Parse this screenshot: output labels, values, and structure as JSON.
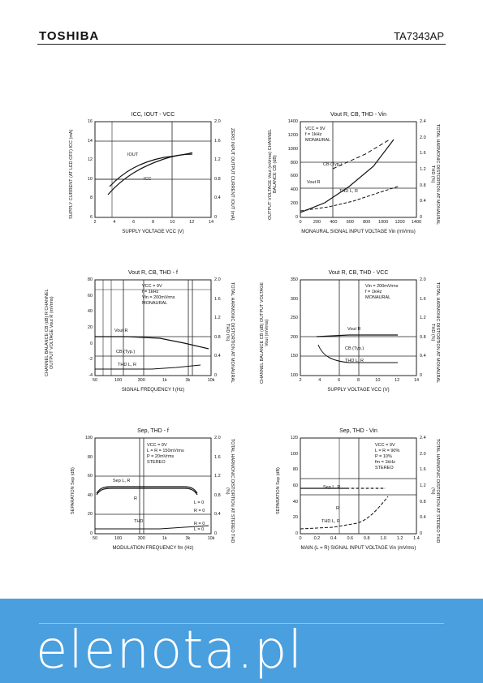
{
  "header": {
    "brand": "TOSHIBA",
    "part_number": "TA7343AP"
  },
  "footer": {
    "site": "elenota.pl"
  },
  "panels": {
    "p1": {
      "title": "ICC, IOUT - VCC",
      "ylabel": "SUPPLY CURRENT (AT LED OFF) ICC (mA)",
      "ylabel_r": "ZERO INPUT OUTPUT CURRENT IOUT (mA)",
      "xlabel": "SUPPLY VOLTAGE VCC (V)",
      "curve_a": "IOUT",
      "curve_b": "ICC",
      "xticks": [
        "2",
        "4",
        "6",
        "8",
        "10",
        "12",
        "14"
      ],
      "yticks_l": [
        "16",
        "14",
        "12",
        "10",
        "8",
        "6"
      ],
      "yticks_r": [
        "2.0",
        "1.6",
        "1.2",
        "0.8",
        "0.4",
        "0"
      ]
    },
    "p2": {
      "title": "Vout R, CB, THD - Vin",
      "ylabel": "OUTPUT VOLTAGE Vout (mVrms) CHANNEL BALANCE CB (dB)",
      "ylabel_r": "TOTAL HARMONIC DISTORTION AT MONAURAL THD (%)",
      "xlabel": "MONAURAL SIGNAL INPUT VOLTAGE Vin (mVrms)",
      "ann": [
        "VCC = 9V",
        "f = 1kHz",
        "MONAURAL"
      ],
      "label_cb": "CB (Typ.)",
      "label_vout": "Vout R",
      "label_thd": "THD L, R",
      "xticks": [
        "0",
        "200",
        "400",
        "600",
        "800",
        "1000",
        "1200",
        "1400"
      ],
      "yticks_l": [
        "1400",
        "1200",
        "1000",
        "800",
        "600",
        "400",
        "200",
        "0"
      ],
      "yticks_r": [
        "2.4",
        "2.0",
        "1.6",
        "1.2",
        "0.8",
        "0.4",
        "0"
      ]
    },
    "p3": {
      "title": "Vout R, CB, THD - f",
      "ylabel": "CHANNEL BALANCE CB (dB) R CHANNEL OUTPUT VOLTAGE Vout R (mVrms)",
      "ylabel_r": "TOTAL HARMONIC DISTORTION AT MONAURAL THD (%)",
      "xlabel": "SIGNAL FREQUENCY f (Hz)",
      "ann": [
        "VCC = 9V",
        "f = 1kHz",
        "Vin = 200mVrms",
        "MONAURAL"
      ],
      "label_vout": "Vout R",
      "label_cb": "CB (Typ.)",
      "label_thd": "THD L, R",
      "xticks": [
        "50",
        "100",
        "300",
        "1k",
        "3k",
        "10k"
      ],
      "yticks_l": [
        "80",
        "60",
        "40",
        "20",
        "0",
        "-2",
        "-4"
      ],
      "yticks_r": [
        "2.0",
        "1.6",
        "1.2",
        "0.8",
        "0.4",
        "0"
      ]
    },
    "p4": {
      "title": "Vout R, CB, THD - VCC",
      "ylabel": "CHANNEL BALANCE CB (dB) OUTPUT VOLTAGE Vout (mVrms)",
      "ylabel_r": "TOTAL HARMONIC DISTORTION AT MONAURAL THD (%)",
      "xlabel": "SUPPLY VOLTAGE VCC (V)",
      "ann": [
        "Vin = 200mVrms",
        "f = 1kHz",
        "MONAURAL"
      ],
      "label_vout": "Vout R",
      "label_cb": "CB (Typ.)",
      "label_thd": "THD L, R",
      "xticks": [
        "2",
        "4",
        "6",
        "8",
        "10",
        "12",
        "14"
      ],
      "yticks_l": [
        "350",
        "300",
        "250",
        "200",
        "150",
        "100"
      ],
      "yticks_r": [
        "2.0",
        "1.6",
        "1.2",
        "0.8",
        "0.4",
        "0"
      ]
    },
    "p5": {
      "title": "Sep, THD - f",
      "ylabel": "SEPARATION Sep (dB)",
      "ylabel_r": "TOTAL HARMONIC DISTORTION AT STEREO THD (%)",
      "xlabel": "MODULATION FREQUENCY fm (Hz)",
      "ann": [
        "VCC = 9V",
        "L = R = 150mVrms",
        "P = 20mVrms",
        "STEREO"
      ],
      "label_sep": "Sep L, R",
      "label_r": "R",
      "label_thd": "THD",
      "label_l0": "L = 0",
      "label_r0": "R = 0",
      "label_r0b": "R = 0",
      "label_l0b": "L = 0",
      "xticks": [
        "50",
        "100",
        "300",
        "1k",
        "3k",
        "10k"
      ],
      "yticks_l": [
        "100",
        "80",
        "60",
        "40",
        "20",
        "0"
      ],
      "yticks_r": [
        "2.0",
        "1.6",
        "1.2",
        "0.8",
        "0.4",
        "0"
      ]
    },
    "p6": {
      "title": "Sep, THD - Vin",
      "ylabel": "SEPARATION Sep (dB)",
      "ylabel_r": "TOTAL HARMONIC DISTORTION AT STEREO THD (%)",
      "xlabel": "MAIN (L = R) SIGNAL INPUT VOLTAGE Vin (mVrms)",
      "ann": [
        "VCC = 9V",
        "L = R = 90%",
        "P = 10%",
        "fm = 1kHz",
        "STEREO"
      ],
      "label_sep": "Sep L, R",
      "label_r": "R",
      "label_thd": "THD L, R",
      "xticks": [
        "0",
        "0.2",
        "0.4",
        "0.6",
        "0.8",
        "1.0",
        "1.2",
        "1.4"
      ],
      "yticks_l": [
        "120",
        "100",
        "80",
        "60",
        "40",
        "20",
        "0"
      ],
      "yticks_r": [
        "2.4",
        "2.0",
        "1.6",
        "1.2",
        "0.8",
        "0.4",
        "0"
      ]
    }
  }
}
